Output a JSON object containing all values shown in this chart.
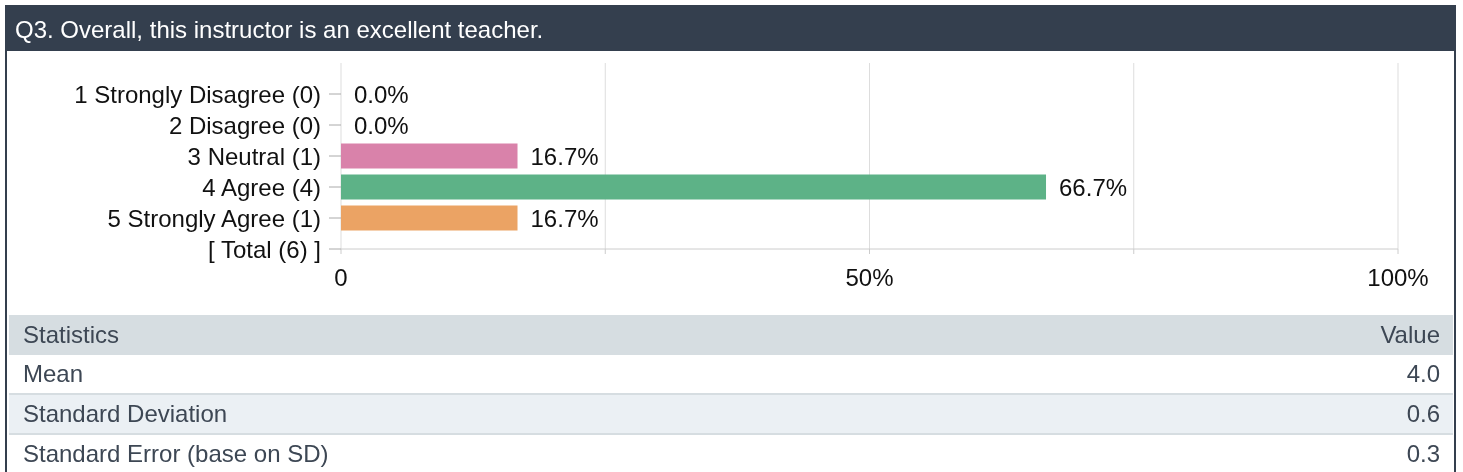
{
  "chart_data": {
    "type": "bar",
    "orientation": "horizontal",
    "title": "Q3. Overall, this instructor is an excellent teacher.",
    "categories": [
      "1 Strongly Disagree (0)",
      "2 Disagree (0)",
      "3 Neutral (1)",
      "4 Agree (4)",
      "5 Strongly Agree (1)",
      "[ Total (6) ]"
    ],
    "values": [
      0,
      0,
      16.7,
      66.7,
      16.7,
      null
    ],
    "colors": [
      null,
      null,
      "#d982aa",
      "#5db287",
      "#eba364",
      null
    ],
    "value_labels": [
      "0.0%",
      "0.0%",
      "16.7%",
      "66.7%",
      "16.7%",
      null
    ],
    "xlim": [
      0,
      100
    ],
    "xticks": [
      0,
      {
        "value": 25,
        "label": null
      },
      {
        "value": 50,
        "label": "50%"
      },
      {
        "value": 75,
        "label": null
      },
      {
        "value": 100,
        "label": "100%"
      }
    ],
    "grid": "x",
    "annotations": [
      "Statistics",
      "Value",
      "Mean",
      "4.0",
      "Standard Deviation",
      "0.6",
      "Standard Error (base on SD)",
      "0.3"
    ]
  }
}
